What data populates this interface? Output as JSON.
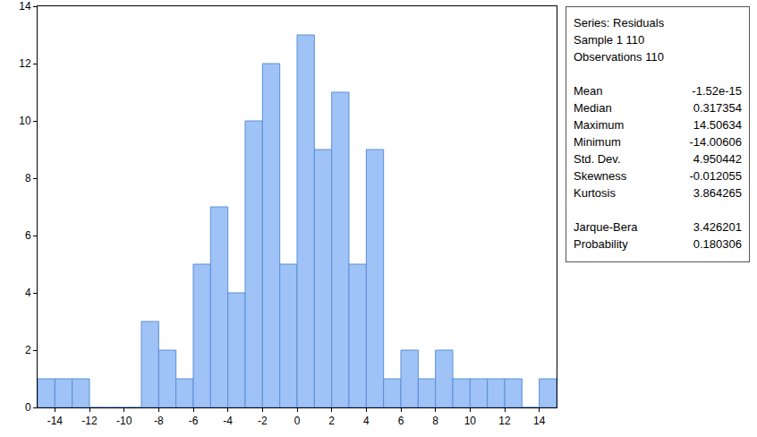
{
  "chart_data": {
    "type": "histogram",
    "bins": [
      -15,
      -14,
      -13,
      -12,
      -11,
      -10,
      -9,
      -8,
      -7,
      -6,
      -5,
      -4,
      -3,
      -2,
      -1,
      0,
      1,
      2,
      3,
      4,
      5,
      6,
      7,
      8,
      9,
      10,
      11,
      12,
      13,
      14,
      15
    ],
    "counts": [
      1,
      1,
      1,
      0,
      0,
      0,
      3,
      2,
      1,
      5,
      7,
      4,
      10,
      12,
      5,
      13,
      9,
      11,
      5,
      9,
      1,
      2,
      1,
      2,
      1,
      1,
      1,
      1,
      0,
      1
    ],
    "color": "#9fc3f7",
    "xlim": [
      -15,
      15
    ],
    "xticks": [
      -14,
      -12,
      -10,
      -8,
      -6,
      -4,
      -2,
      0,
      2,
      4,
      6,
      8,
      10,
      12,
      14
    ],
    "ylim": [
      0,
      14
    ],
    "yticks": [
      0,
      2,
      4,
      6,
      8,
      10,
      12,
      14
    ],
    "grid": false
  },
  "stats_box": {
    "header": [
      "Series: Residuals",
      "Sample 1 110",
      "Observations 110"
    ],
    "rows": [
      [
        "Mean",
        "-1.52e-15"
      ],
      [
        "Median",
        "0.317354"
      ],
      [
        "Maximum",
        "14.50634"
      ],
      [
        "Minimum",
        "-14.00606"
      ],
      [
        "Std. Dev.",
        "4.950442"
      ],
      [
        "Skewness",
        "-0.012055"
      ],
      [
        "Kurtosis",
        "3.864265"
      ]
    ],
    "test_rows": [
      [
        "Jarque-Bera",
        "3.426201"
      ],
      [
        "Probability",
        "0.180306"
      ]
    ]
  }
}
